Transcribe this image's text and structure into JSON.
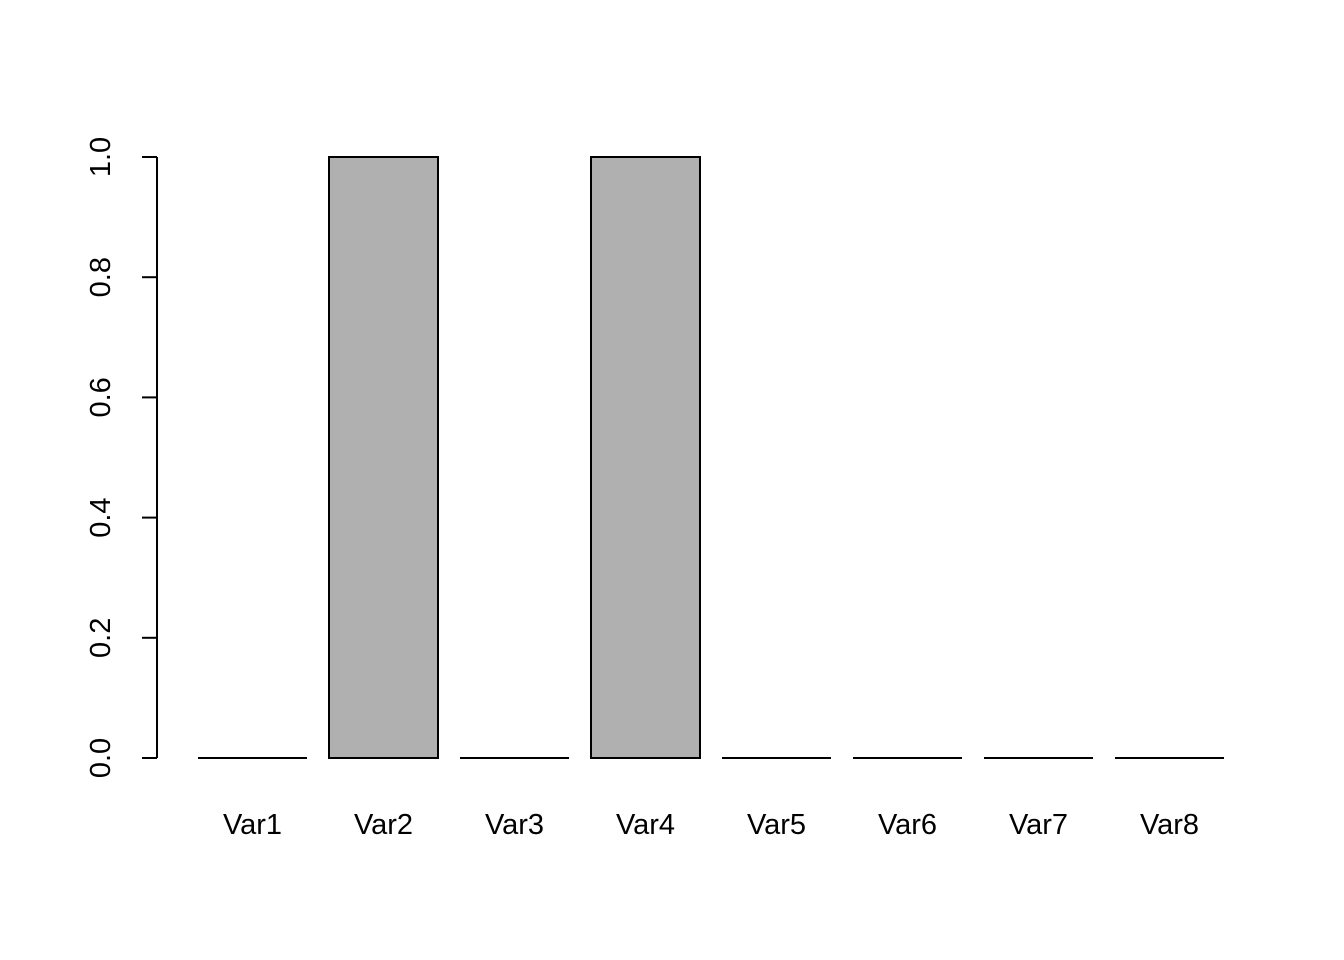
{
  "chart_data": {
    "type": "bar",
    "categories": [
      "Var1",
      "Var2",
      "Var3",
      "Var4",
      "Var5",
      "Var6",
      "Var7",
      "Var8"
    ],
    "values": [
      0,
      1,
      0,
      1,
      0,
      0,
      0,
      0
    ],
    "yticks": [
      "0.0",
      "0.2",
      "0.4",
      "0.6",
      "0.8",
      "1.0"
    ],
    "ylim": [
      0,
      1
    ],
    "grid": false,
    "bar_fill": "#b0b0b0",
    "bar_stroke": "#000000"
  }
}
